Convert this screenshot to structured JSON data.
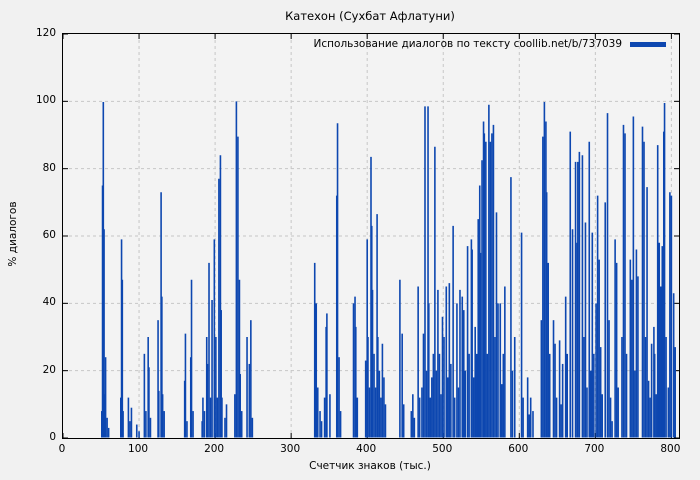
{
  "title": "Катехон (Сухбат Афлатуни)",
  "legend": {
    "label": "Использование диалогов по тексту coollib.net/b/737039",
    "color": "#0d47b0"
  },
  "axes": {
    "xlabel": "Счетчик знаков (тыс.)",
    "ylabel": "% диалогов",
    "xticks": [
      0,
      100,
      200,
      300,
      400,
      500,
      600,
      700,
      800
    ],
    "yticks": [
      0,
      20,
      40,
      60,
      80,
      100,
      120
    ],
    "xmax": 810,
    "ymax": 120,
    "grid": true,
    "grid_color": "#c6c6c6",
    "border_color": "#000000",
    "background": "#f3f3f3"
  },
  "chart_data": {
    "type": "bar",
    "title": "Катехон (Сухбат Афлатуни)",
    "xlabel": "Счетчик знаков (тыс.)",
    "ylabel": "% диалогов",
    "legend": [
      "Использование диалогов по тексту coollib.net/b/737039"
    ],
    "legend_position": "top-right-inside",
    "xlim": [
      0,
      810
    ],
    "ylim": [
      0,
      120
    ],
    "series_color": "#0d47b0",
    "points": [
      [
        51,
        8
      ],
      [
        52,
        75
      ],
      [
        53,
        99.8
      ],
      [
        54,
        62
      ],
      [
        55,
        13
      ],
      [
        56,
        24
      ],
      [
        58,
        6
      ],
      [
        60,
        3
      ],
      [
        76,
        12
      ],
      [
        77,
        59
      ],
      [
        78,
        47
      ],
      [
        79,
        8
      ],
      [
        86,
        12
      ],
      [
        88,
        5
      ],
      [
        90,
        9
      ],
      [
        97,
        4
      ],
      [
        100,
        2
      ],
      [
        107,
        25
      ],
      [
        109,
        8
      ],
      [
        112,
        30
      ],
      [
        113,
        21
      ],
      [
        115,
        6
      ],
      [
        125,
        35
      ],
      [
        126,
        14
      ],
      [
        129,
        73
      ],
      [
        130,
        42
      ],
      [
        131,
        13
      ],
      [
        133,
        8
      ],
      [
        160,
        17
      ],
      [
        161,
        31
      ],
      [
        163,
        5
      ],
      [
        168,
        24
      ],
      [
        169,
        47
      ],
      [
        171,
        8
      ],
      [
        183,
        5
      ],
      [
        184,
        12
      ],
      [
        186,
        8
      ],
      [
        189,
        30
      ],
      [
        190,
        22
      ],
      [
        192,
        52
      ],
      [
        194,
        12
      ],
      [
        196,
        41
      ],
      [
        199,
        59
      ],
      [
        201,
        30
      ],
      [
        203,
        12
      ],
      [
        205,
        77
      ],
      [
        207,
        84
      ],
      [
        208,
        38
      ],
      [
        209,
        12
      ],
      [
        213,
        6
      ],
      [
        215,
        10
      ],
      [
        226,
        13
      ],
      [
        228,
        100
      ],
      [
        230,
        89.5
      ],
      [
        232,
        47
      ],
      [
        233,
        19
      ],
      [
        235,
        8
      ],
      [
        242,
        30
      ],
      [
        245,
        22
      ],
      [
        247,
        35
      ],
      [
        249,
        6
      ],
      [
        331,
        52
      ],
      [
        333,
        40
      ],
      [
        335,
        15
      ],
      [
        338,
        8
      ],
      [
        340,
        5
      ],
      [
        344,
        12
      ],
      [
        346,
        33
      ],
      [
        347,
        37
      ],
      [
        351,
        13
      ],
      [
        360,
        72
      ],
      [
        361,
        93.5
      ],
      [
        363,
        24
      ],
      [
        365,
        8
      ],
      [
        382,
        40
      ],
      [
        384,
        42
      ],
      [
        385,
        33
      ],
      [
        387,
        12
      ],
      [
        398,
        23
      ],
      [
        400,
        59
      ],
      [
        401,
        30
      ],
      [
        403,
        15
      ],
      [
        405,
        83.5
      ],
      [
        406,
        63
      ],
      [
        407,
        44
      ],
      [
        409,
        25
      ],
      [
        411,
        15
      ],
      [
        413,
        66.5
      ],
      [
        414,
        30
      ],
      [
        416,
        20
      ],
      [
        418,
        12
      ],
      [
        420,
        28
      ],
      [
        422,
        18
      ],
      [
        424,
        10
      ],
      [
        443,
        47
      ],
      [
        446,
        31
      ],
      [
        448,
        10
      ],
      [
        458,
        8
      ],
      [
        460,
        13
      ],
      [
        462,
        6
      ],
      [
        467,
        45
      ],
      [
        469,
        12
      ],
      [
        472,
        15
      ],
      [
        474,
        31
      ],
      [
        476,
        98.5
      ],
      [
        478,
        20
      ],
      [
        480,
        98.5
      ],
      [
        481,
        40
      ],
      [
        483,
        12
      ],
      [
        485,
        18
      ],
      [
        487,
        25
      ],
      [
        489,
        86.5
      ],
      [
        491,
        20
      ],
      [
        493,
        44
      ],
      [
        495,
        25
      ],
      [
        497,
        13
      ],
      [
        499,
        36
      ],
      [
        501,
        30
      ],
      [
        504,
        45
      ],
      [
        506,
        18
      ],
      [
        508,
        46
      ],
      [
        510,
        22
      ],
      [
        513,
        63
      ],
      [
        515,
        12
      ],
      [
        518,
        40
      ],
      [
        520,
        15
      ],
      [
        522,
        44
      ],
      [
        525,
        42
      ],
      [
        527,
        38
      ],
      [
        529,
        20
      ],
      [
        532,
        57
      ],
      [
        534,
        25
      ],
      [
        537,
        59
      ],
      [
        538,
        56
      ],
      [
        540,
        18
      ],
      [
        542,
        33
      ],
      [
        544,
        25
      ],
      [
        546,
        65
      ],
      [
        548,
        75
      ],
      [
        549,
        55
      ],
      [
        551,
        82.5
      ],
      [
        553,
        94
      ],
      [
        554,
        90.5
      ],
      [
        556,
        88
      ],
      [
        558,
        25
      ],
      [
        560,
        99
      ],
      [
        562,
        88
      ],
      [
        564,
        90.5
      ],
      [
        566,
        93
      ],
      [
        568,
        30
      ],
      [
        570,
        67
      ],
      [
        572,
        40
      ],
      [
        575,
        40
      ],
      [
        577,
        16
      ],
      [
        579,
        25
      ],
      [
        581,
        45
      ],
      [
        589,
        77.5
      ],
      [
        591,
        20
      ],
      [
        594,
        30
      ],
      [
        603,
        61
      ],
      [
        605,
        12
      ],
      [
        611,
        18
      ],
      [
        613,
        7
      ],
      [
        615,
        12
      ],
      [
        618,
        8
      ],
      [
        629,
        35
      ],
      [
        631,
        89.5
      ],
      [
        633,
        99.8
      ],
      [
        635,
        94
      ],
      [
        636,
        73
      ],
      [
        638,
        52
      ],
      [
        640,
        25
      ],
      [
        645,
        35
      ],
      [
        647,
        28
      ],
      [
        649,
        12
      ],
      [
        653,
        29
      ],
      [
        655,
        10
      ],
      [
        657,
        22
      ],
      [
        661,
        42
      ],
      [
        663,
        25
      ],
      [
        667,
        91
      ],
      [
        670,
        62
      ],
      [
        674,
        82
      ],
      [
        676,
        58
      ],
      [
        677,
        82
      ],
      [
        679,
        85
      ],
      [
        683,
        84
      ],
      [
        685,
        30
      ],
      [
        687,
        64
      ],
      [
        689,
        15
      ],
      [
        692,
        88
      ],
      [
        694,
        20
      ],
      [
        696,
        61
      ],
      [
        698,
        25
      ],
      [
        701,
        40
      ],
      [
        703,
        72
      ],
      [
        705,
        53
      ],
      [
        707,
        27
      ],
      [
        709,
        13
      ],
      [
        713,
        70
      ],
      [
        716,
        96.5
      ],
      [
        718,
        35
      ],
      [
        720,
        12
      ],
      [
        722,
        5
      ],
      [
        726,
        59
      ],
      [
        728,
        52
      ],
      [
        730,
        15
      ],
      [
        735,
        30
      ],
      [
        737,
        93
      ],
      [
        739,
        90.5
      ],
      [
        741,
        25
      ],
      [
        746,
        53
      ],
      [
        748,
        47
      ],
      [
        750,
        95.5
      ],
      [
        752,
        20
      ],
      [
        754,
        56
      ],
      [
        756,
        48
      ],
      [
        762,
        92.5
      ],
      [
        764,
        88
      ],
      [
        766,
        30
      ],
      [
        768,
        74.5
      ],
      [
        770,
        17
      ],
      [
        772,
        12
      ],
      [
        774,
        28
      ],
      [
        777,
        33
      ],
      [
        778,
        25
      ],
      [
        780,
        13
      ],
      [
        782,
        87
      ],
      [
        784,
        58
      ],
      [
        786,
        45
      ],
      [
        788,
        57
      ],
      [
        790,
        91
      ],
      [
        791,
        99.5
      ],
      [
        793,
        30
      ],
      [
        796,
        15
      ],
      [
        798,
        73
      ],
      [
        800,
        72
      ],
      [
        803,
        43
      ],
      [
        805,
        27
      ]
    ]
  }
}
